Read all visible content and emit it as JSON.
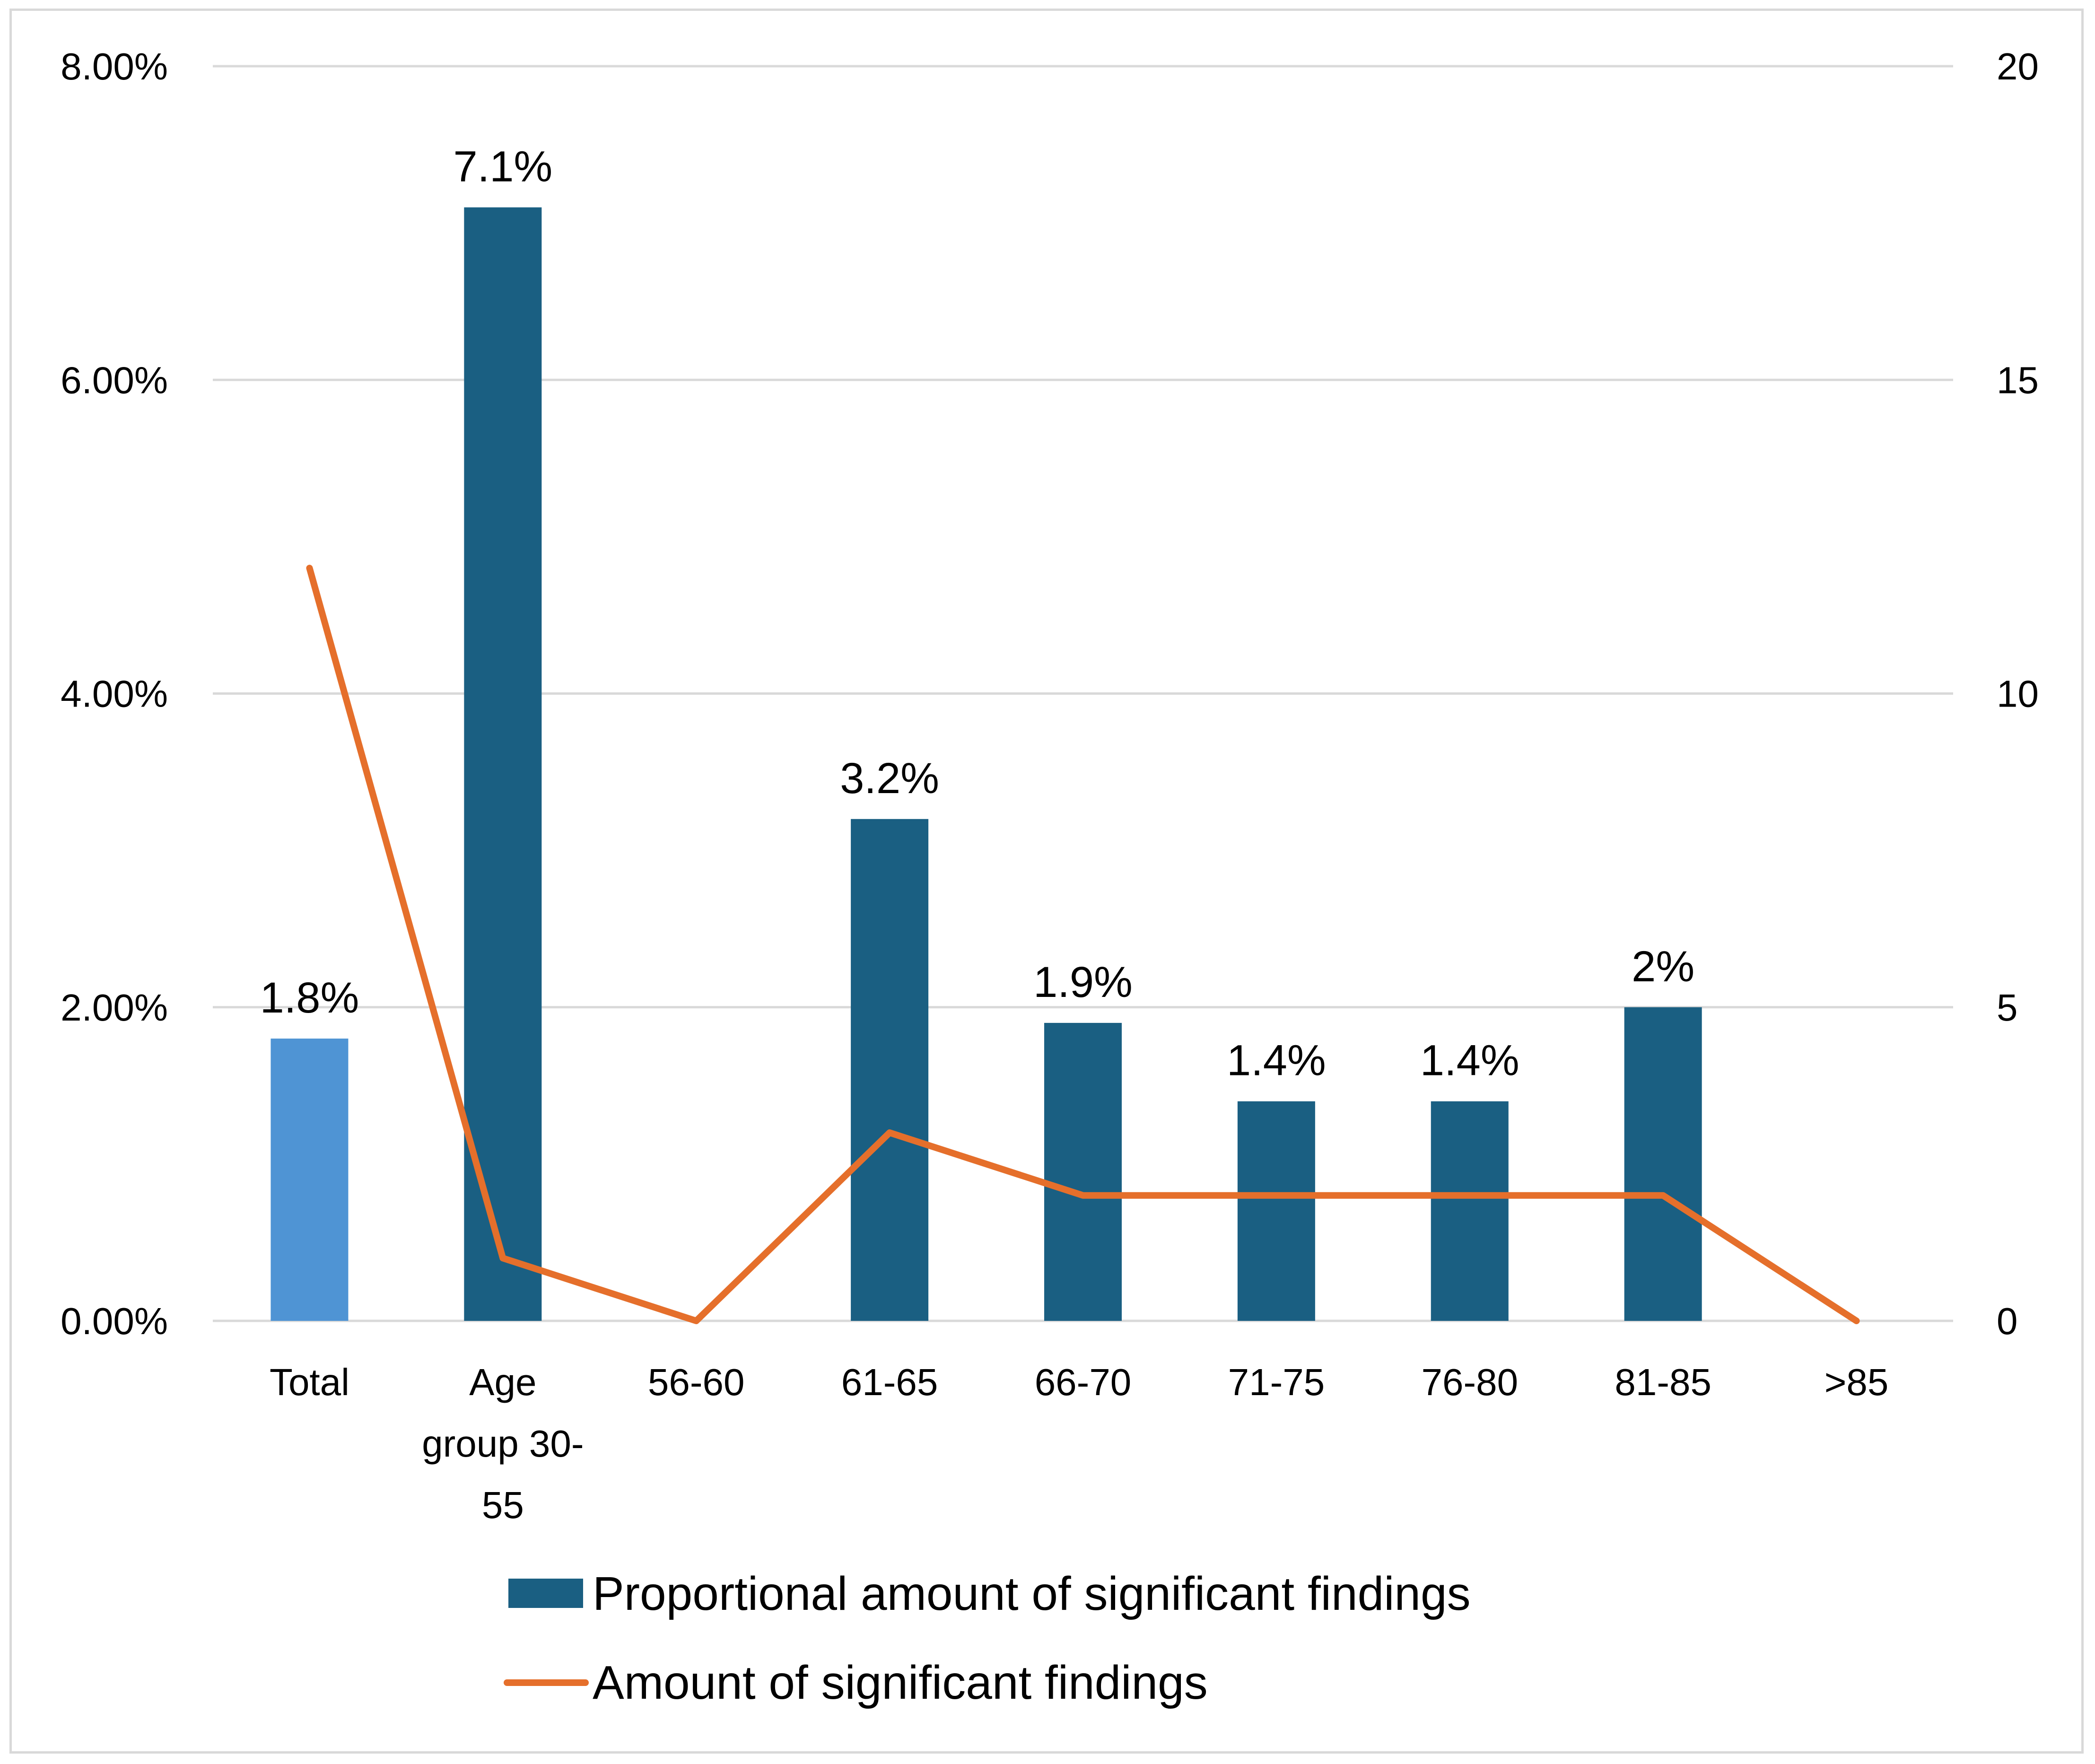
{
  "chart_data": {
    "type": "bar",
    "categories": [
      "Total",
      "Age group 30-55",
      "56-60",
      "61-65",
      "66-70",
      "71-75",
      "76-80",
      "81-85",
      ">85"
    ],
    "category_label_lines": [
      [
        "Total"
      ],
      [
        "Age",
        "group 30-",
        "55"
      ],
      [
        "56-60"
      ],
      [
        "61-65"
      ],
      [
        "66-70"
      ],
      [
        "71-75"
      ],
      [
        "76-80"
      ],
      [
        "81-85"
      ],
      [
        ">85"
      ]
    ],
    "series": [
      {
        "name": "Proportional amount of significant findings",
        "kind": "bar",
        "axis": "left",
        "values": [
          1.8,
          7.1,
          0,
          3.2,
          1.9,
          1.4,
          1.4,
          2.0,
          0
        ],
        "data_labels": [
          "1.8%",
          "7.1%",
          "",
          "3.2%",
          "1.9%",
          "1.4%",
          "1.4%",
          "2%",
          ""
        ],
        "color": "#1a5f82",
        "highlight_color": "#4f94d4"
      },
      {
        "name": "Amount of significant findings",
        "kind": "line",
        "axis": "right",
        "values": [
          12,
          1,
          0,
          3,
          2,
          2,
          2,
          2,
          0
        ],
        "color": "#e56f2b"
      }
    ],
    "y_left": {
      "range": [
        0,
        8
      ],
      "ticks": [
        0,
        2,
        4,
        6,
        8
      ],
      "tick_labels": [
        "0.00%",
        "2.00%",
        "4.00%",
        "6.00%",
        "8.00%"
      ]
    },
    "y_right": {
      "range": [
        0,
        20
      ],
      "ticks": [
        0,
        5,
        10,
        15,
        20
      ],
      "tick_labels": [
        "0",
        "5",
        "10",
        "15",
        "20"
      ]
    },
    "grid": true,
    "legend_position": "bottom"
  }
}
